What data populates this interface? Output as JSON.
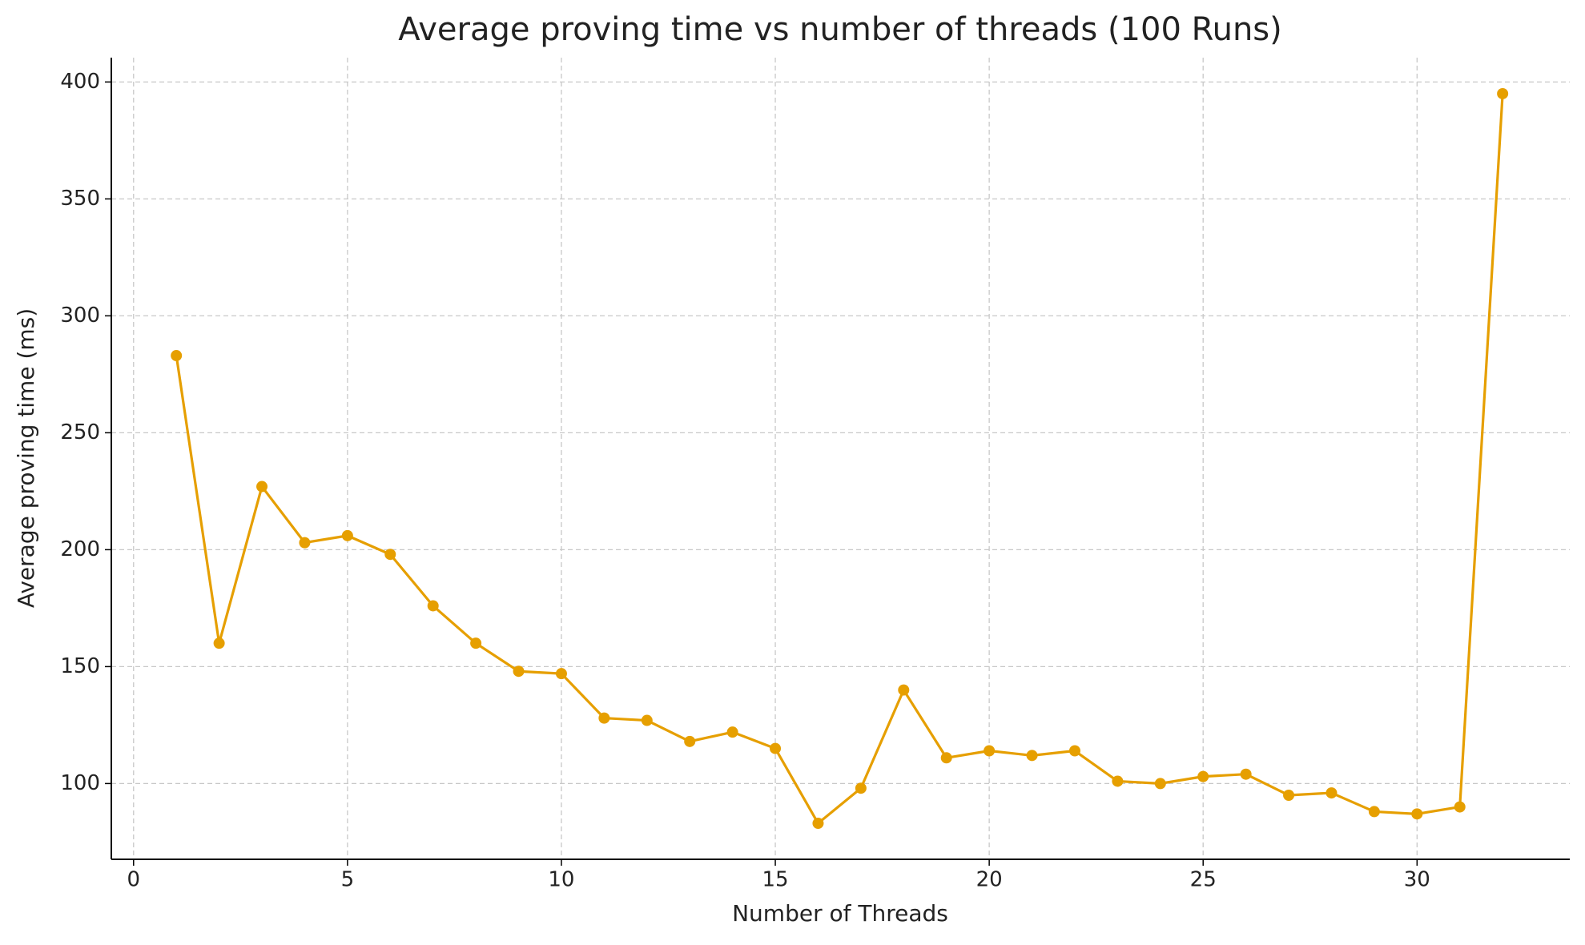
{
  "chart_data": {
    "type": "line",
    "title": "Average proving time vs number of threads (100 Runs)",
    "x_label": "Number of Threads",
    "y_label": "Average proving time (ms)",
    "x": [
      1,
      2,
      3,
      4,
      5,
      6,
      7,
      8,
      9,
      10,
      11,
      12,
      13,
      14,
      15,
      16,
      17,
      18,
      19,
      20,
      21,
      22,
      23,
      24,
      25,
      26,
      27,
      28,
      29,
      30,
      31,
      32
    ],
    "series": [
      {
        "name": "Average proving time",
        "color": "#e69f00",
        "values": [
          283,
          160,
          227,
          203,
          206,
          198,
          176,
          160,
          148,
          147,
          128,
          127,
          118,
          122,
          115,
          83,
          98,
          140,
          111,
          114,
          112,
          114,
          101,
          100,
          103,
          104,
          95,
          96,
          88,
          87,
          90,
          395
        ]
      }
    ],
    "xlim": [
      -0.52,
      33.57
    ],
    "ylim": [
      67.6,
      410.4
    ],
    "xticks": [
      0,
      5,
      10,
      15,
      20,
      25,
      30
    ],
    "yticks": [
      100,
      150,
      200,
      250,
      300,
      350,
      400
    ],
    "grid": true,
    "markers": true
  }
}
